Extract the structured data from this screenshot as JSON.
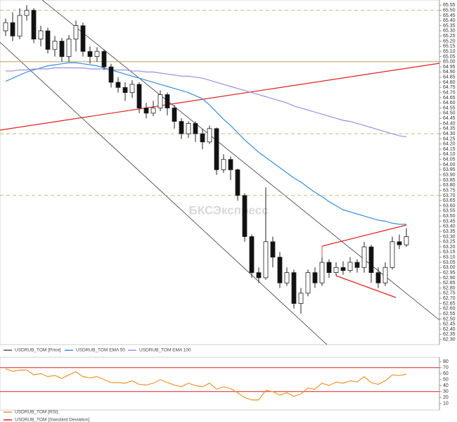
{
  "watermark": "БКСЭкспресс",
  "chart_data": [
    {
      "type": "candlestick",
      "price_name": "USDRUB_TOM [Price]",
      "price_color": "#555555",
      "open": [
        65.3,
        65.38,
        65.25,
        65.45,
        65.5,
        65.22,
        65.3,
        65.12,
        65.2,
        65.05,
        65.22,
        65.35,
        65.1,
        65.05,
        65.1,
        64.95,
        64.8,
        64.75,
        64.7,
        64.78,
        64.55,
        64.5,
        64.55,
        64.68,
        64.55,
        64.42,
        64.3,
        64.4,
        64.3,
        64.22,
        64.35,
        63.95,
        64.05,
        63.95,
        63.7,
        63.3,
        62.95,
        62.9,
        63.25,
        63.1,
        62.85,
        62.95,
        62.65,
        62.75,
        62.95,
        62.85,
        63.05,
        62.95,
        63.0,
        62.97,
        63.05,
        63.0,
        63.2,
        62.95,
        62.85,
        63.0,
        63.25,
        63.22
      ],
      "high": [
        65.42,
        65.48,
        65.52,
        65.55,
        65.52,
        65.35,
        65.33,
        65.25,
        65.23,
        65.26,
        65.4,
        65.38,
        65.15,
        65.14,
        65.12,
        64.98,
        64.85,
        64.8,
        64.82,
        64.8,
        64.6,
        64.62,
        64.72,
        64.7,
        64.58,
        64.45,
        64.42,
        64.42,
        64.35,
        64.38,
        64.36,
        64.1,
        64.08,
        63.96,
        63.72,
        63.32,
        63.0,
        63.78,
        63.3,
        63.15,
        63.0,
        62.98,
        62.8,
        62.98,
        63.0,
        63.1,
        63.08,
        63.05,
        63.06,
        63.1,
        63.08,
        63.25,
        63.22,
        63.0,
        63.05,
        63.3,
        63.32,
        63.38
      ],
      "low": [
        65.25,
        65.2,
        65.22,
        65.4,
        65.18,
        65.15,
        65.08,
        65.05,
        65.0,
        65.0,
        65.1,
        65.05,
        64.98,
        65.0,
        64.92,
        64.75,
        64.7,
        64.62,
        64.65,
        64.5,
        64.45,
        64.47,
        64.52,
        64.48,
        64.35,
        64.25,
        64.26,
        64.22,
        64.15,
        64.2,
        63.9,
        63.92,
        63.85,
        63.65,
        63.25,
        62.9,
        62.85,
        62.88,
        63.0,
        62.8,
        62.82,
        62.6,
        62.55,
        62.72,
        62.8,
        62.82,
        62.9,
        62.92,
        62.93,
        62.95,
        62.95,
        62.95,
        62.85,
        62.8,
        62.82,
        62.98,
        63.18,
        63.2
      ],
      "close": [
        65.38,
        65.25,
        65.45,
        65.5,
        65.22,
        65.3,
        65.12,
        65.2,
        65.05,
        65.22,
        65.35,
        65.1,
        65.05,
        65.1,
        64.95,
        64.8,
        64.75,
        64.7,
        64.78,
        64.55,
        64.5,
        64.55,
        64.68,
        64.55,
        64.42,
        64.3,
        64.4,
        64.3,
        64.22,
        64.35,
        63.95,
        64.05,
        63.95,
        63.7,
        63.3,
        62.95,
        62.9,
        63.25,
        63.1,
        62.85,
        62.95,
        62.65,
        62.75,
        62.95,
        62.85,
        63.05,
        62.95,
        63.0,
        62.97,
        63.05,
        63.0,
        63.2,
        62.95,
        62.85,
        63.0,
        63.25,
        63.22,
        63.3
      ],
      "series": [
        {
          "name": "USDRUB_TOM EMA 50",
          "color": "#3a8fd8",
          "values": [
            64.81,
            64.84,
            64.87,
            64.9,
            64.92,
            64.94,
            64.96,
            64.97,
            64.98,
            64.99,
            64.99,
            64.98,
            64.97,
            64.96,
            64.94,
            64.92,
            64.9,
            64.88,
            64.86,
            64.84,
            64.82,
            64.8,
            64.78,
            64.76,
            64.74,
            64.72,
            64.7,
            64.67,
            64.64,
            64.58,
            64.51,
            64.44,
            64.38,
            64.31,
            64.24,
            64.18,
            64.12,
            64.07,
            64.02,
            63.97,
            63.92,
            63.87,
            63.83,
            63.78,
            63.73,
            63.69,
            63.64,
            63.6,
            63.56,
            63.54,
            63.52,
            63.5,
            63.48,
            63.46,
            63.45,
            63.43,
            63.42,
            63.42
          ]
        },
        {
          "name": "USDRUB_TOM EMA 100",
          "color": "#9b8fe0",
          "values": [
            64.91,
            64.91,
            64.92,
            64.92,
            64.93,
            64.93,
            64.93,
            64.94,
            64.94,
            64.94,
            64.94,
            64.94,
            64.93,
            64.93,
            64.93,
            64.92,
            64.92,
            64.92,
            64.91,
            64.91,
            64.9,
            64.9,
            64.89,
            64.88,
            64.87,
            64.86,
            64.86,
            64.85,
            64.84,
            64.82,
            64.8,
            64.78,
            64.76,
            64.74,
            64.72,
            64.7,
            64.68,
            64.66,
            64.64,
            64.62,
            64.6,
            64.57,
            64.55,
            64.53,
            64.51,
            64.49,
            64.47,
            64.45,
            64.43,
            64.42,
            64.4,
            64.38,
            64.36,
            64.34,
            64.32,
            64.3,
            64.28,
            64.27
          ]
        }
      ],
      "hlines": [
        65.5,
        64.3,
        63.7
      ],
      "hline_color": "#c8b77a",
      "solid_hline": 65,
      "solid_hline_color": "#b5a360",
      "ylim": [
        62.25,
        65.6
      ],
      "yticks": [
        {
          "value": 62.3,
          "label": "62.30"
        },
        62.35,
        {
          "value": 62.4,
          "label": "62.40"
        },
        62.45,
        {
          "value": 62.5,
          "label": "62.50"
        },
        62.55,
        {
          "value": 62.6,
          "label": "62.60"
        },
        62.65,
        {
          "value": 62.7,
          "label": "62.70"
        },
        62.75,
        {
          "value": 62.8,
          "label": "62.80"
        },
        62.85,
        {
          "value": 62.9,
          "label": "62.90"
        },
        62.95,
        {
          "value": 63,
          "label": "63.00"
        },
        63.05,
        {
          "value": 63.1,
          "label": "63.10"
        },
        63.15,
        {
          "value": 63.2,
          "label": "63.20"
        },
        63.25,
        {
          "value": 63.3,
          "label": "63.30"
        },
        63.35,
        {
          "value": 63.4,
          "label": "63.40"
        },
        63.45,
        {
          "value": 63.5,
          "label": "63.50"
        },
        63.55,
        {
          "value": 63.6,
          "label": "63.60"
        },
        63.65,
        {
          "value": 63.7,
          "label": "63.70"
        },
        63.75,
        {
          "value": 63.8,
          "label": "63.80"
        },
        63.85,
        {
          "value": 63.9,
          "label": "63.90"
        },
        63.95,
        {
          "value": 64,
          "label": "64.00"
        },
        64.05,
        {
          "value": 64.1,
          "label": "64.10"
        },
        64.15,
        {
          "value": 64.2,
          "label": "64.20"
        },
        64.25,
        {
          "value": 64.3,
          "label": "64.30"
        },
        64.35,
        {
          "value": 64.4,
          "label": "64.40"
        },
        64.45,
        {
          "value": 64.5,
          "label": "64.50"
        },
        64.55,
        {
          "value": 64.6,
          "label": "64.60"
        },
        64.65,
        {
          "value": 64.7,
          "label": "64.70"
        },
        64.75,
        {
          "value": 64.8,
          "label": "64.80"
        },
        64.85,
        {
          "value": 64.9,
          "label": "64.90"
        },
        64.95,
        {
          "value": 65,
          "label": "65.00"
        },
        65.05,
        {
          "value": 65.1,
          "label": "65.10"
        },
        65.15,
        {
          "value": 65.2,
          "label": "65.20"
        },
        65.25,
        {
          "value": 65.3,
          "label": "65.30"
        },
        65.35,
        {
          "value": 65.4,
          "label": "65.40"
        },
        65.45,
        {
          "value": 65.5,
          "label": "65.50"
        },
        65.55
      ]
    },
    {
      "type": "line",
      "series": [
        {
          "name": "USDRUB_TOM [RSI]",
          "color": "#e8962e",
          "values": [
            68,
            64,
            66,
            66,
            58,
            60,
            55,
            57,
            52,
            58,
            63,
            55,
            53,
            55,
            50,
            45,
            45,
            44,
            48,
            42,
            41,
            44,
            50,
            45,
            41,
            38,
            44,
            40,
            38,
            44,
            34,
            38,
            35,
            28,
            20,
            16,
            16,
            32,
            30,
            24,
            28,
            22,
            26,
            36,
            34,
            44,
            40,
            46,
            44,
            48,
            46,
            55,
            45,
            42,
            48,
            58,
            57,
            59
          ]
        }
      ],
      "levels": [
        70,
        30
      ],
      "level_color": "#dd2222",
      "ylim": [
        5,
        85
      ],
      "yticks": [
        10,
        20,
        30,
        40,
        50,
        60,
        70,
        80
      ],
      "extra_legend": "USDRUB_TOM [Standard Deviation]",
      "extra_legend_color": "#dd2222"
    }
  ]
}
